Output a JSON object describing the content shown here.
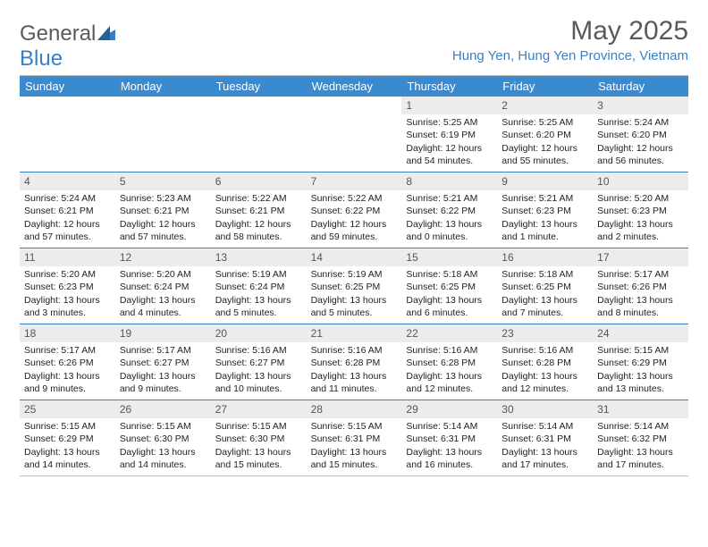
{
  "brand": {
    "general": "General",
    "blue": "Blue"
  },
  "title": "May 2025",
  "location": "Hung Yen, Hung Yen Province, Vietnam",
  "weekdays": [
    "Sunday",
    "Monday",
    "Tuesday",
    "Wednesday",
    "Thursday",
    "Friday",
    "Saturday"
  ],
  "colors": {
    "header_bg": "#3a8ad0",
    "brand_blue": "#3a7fc4",
    "row_divider": "#3a7fc4",
    "num_bg": "#ececec"
  },
  "weeks": [
    [
      {
        "n": "",
        "sr": "",
        "ss": "",
        "dl1": "",
        "dl2": "",
        "empty": true
      },
      {
        "n": "",
        "sr": "",
        "ss": "",
        "dl1": "",
        "dl2": "",
        "empty": true
      },
      {
        "n": "",
        "sr": "",
        "ss": "",
        "dl1": "",
        "dl2": "",
        "empty": true
      },
      {
        "n": "",
        "sr": "",
        "ss": "",
        "dl1": "",
        "dl2": "",
        "empty": true
      },
      {
        "n": "1",
        "sr": "Sunrise: 5:25 AM",
        "ss": "Sunset: 6:19 PM",
        "dl1": "Daylight: 12 hours",
        "dl2": "and 54 minutes."
      },
      {
        "n": "2",
        "sr": "Sunrise: 5:25 AM",
        "ss": "Sunset: 6:20 PM",
        "dl1": "Daylight: 12 hours",
        "dl2": "and 55 minutes."
      },
      {
        "n": "3",
        "sr": "Sunrise: 5:24 AM",
        "ss": "Sunset: 6:20 PM",
        "dl1": "Daylight: 12 hours",
        "dl2": "and 56 minutes."
      }
    ],
    [
      {
        "n": "4",
        "sr": "Sunrise: 5:24 AM",
        "ss": "Sunset: 6:21 PM",
        "dl1": "Daylight: 12 hours",
        "dl2": "and 57 minutes."
      },
      {
        "n": "5",
        "sr": "Sunrise: 5:23 AM",
        "ss": "Sunset: 6:21 PM",
        "dl1": "Daylight: 12 hours",
        "dl2": "and 57 minutes."
      },
      {
        "n": "6",
        "sr": "Sunrise: 5:22 AM",
        "ss": "Sunset: 6:21 PM",
        "dl1": "Daylight: 12 hours",
        "dl2": "and 58 minutes."
      },
      {
        "n": "7",
        "sr": "Sunrise: 5:22 AM",
        "ss": "Sunset: 6:22 PM",
        "dl1": "Daylight: 12 hours",
        "dl2": "and 59 minutes."
      },
      {
        "n": "8",
        "sr": "Sunrise: 5:21 AM",
        "ss": "Sunset: 6:22 PM",
        "dl1": "Daylight: 13 hours",
        "dl2": "and 0 minutes."
      },
      {
        "n": "9",
        "sr": "Sunrise: 5:21 AM",
        "ss": "Sunset: 6:23 PM",
        "dl1": "Daylight: 13 hours",
        "dl2": "and 1 minute."
      },
      {
        "n": "10",
        "sr": "Sunrise: 5:20 AM",
        "ss": "Sunset: 6:23 PM",
        "dl1": "Daylight: 13 hours",
        "dl2": "and 2 minutes."
      }
    ],
    [
      {
        "n": "11",
        "sr": "Sunrise: 5:20 AM",
        "ss": "Sunset: 6:23 PM",
        "dl1": "Daylight: 13 hours",
        "dl2": "and 3 minutes."
      },
      {
        "n": "12",
        "sr": "Sunrise: 5:20 AM",
        "ss": "Sunset: 6:24 PM",
        "dl1": "Daylight: 13 hours",
        "dl2": "and 4 minutes."
      },
      {
        "n": "13",
        "sr": "Sunrise: 5:19 AM",
        "ss": "Sunset: 6:24 PM",
        "dl1": "Daylight: 13 hours",
        "dl2": "and 5 minutes."
      },
      {
        "n": "14",
        "sr": "Sunrise: 5:19 AM",
        "ss": "Sunset: 6:25 PM",
        "dl1": "Daylight: 13 hours",
        "dl2": "and 5 minutes."
      },
      {
        "n": "15",
        "sr": "Sunrise: 5:18 AM",
        "ss": "Sunset: 6:25 PM",
        "dl1": "Daylight: 13 hours",
        "dl2": "and 6 minutes."
      },
      {
        "n": "16",
        "sr": "Sunrise: 5:18 AM",
        "ss": "Sunset: 6:25 PM",
        "dl1": "Daylight: 13 hours",
        "dl2": "and 7 minutes."
      },
      {
        "n": "17",
        "sr": "Sunrise: 5:17 AM",
        "ss": "Sunset: 6:26 PM",
        "dl1": "Daylight: 13 hours",
        "dl2": "and 8 minutes."
      }
    ],
    [
      {
        "n": "18",
        "sr": "Sunrise: 5:17 AM",
        "ss": "Sunset: 6:26 PM",
        "dl1": "Daylight: 13 hours",
        "dl2": "and 9 minutes."
      },
      {
        "n": "19",
        "sr": "Sunrise: 5:17 AM",
        "ss": "Sunset: 6:27 PM",
        "dl1": "Daylight: 13 hours",
        "dl2": "and 9 minutes."
      },
      {
        "n": "20",
        "sr": "Sunrise: 5:16 AM",
        "ss": "Sunset: 6:27 PM",
        "dl1": "Daylight: 13 hours",
        "dl2": "and 10 minutes."
      },
      {
        "n": "21",
        "sr": "Sunrise: 5:16 AM",
        "ss": "Sunset: 6:28 PM",
        "dl1": "Daylight: 13 hours",
        "dl2": "and 11 minutes."
      },
      {
        "n": "22",
        "sr": "Sunrise: 5:16 AM",
        "ss": "Sunset: 6:28 PM",
        "dl1": "Daylight: 13 hours",
        "dl2": "and 12 minutes."
      },
      {
        "n": "23",
        "sr": "Sunrise: 5:16 AM",
        "ss": "Sunset: 6:28 PM",
        "dl1": "Daylight: 13 hours",
        "dl2": "and 12 minutes."
      },
      {
        "n": "24",
        "sr": "Sunrise: 5:15 AM",
        "ss": "Sunset: 6:29 PM",
        "dl1": "Daylight: 13 hours",
        "dl2": "and 13 minutes."
      }
    ],
    [
      {
        "n": "25",
        "sr": "Sunrise: 5:15 AM",
        "ss": "Sunset: 6:29 PM",
        "dl1": "Daylight: 13 hours",
        "dl2": "and 14 minutes."
      },
      {
        "n": "26",
        "sr": "Sunrise: 5:15 AM",
        "ss": "Sunset: 6:30 PM",
        "dl1": "Daylight: 13 hours",
        "dl2": "and 14 minutes."
      },
      {
        "n": "27",
        "sr": "Sunrise: 5:15 AM",
        "ss": "Sunset: 6:30 PM",
        "dl1": "Daylight: 13 hours",
        "dl2": "and 15 minutes."
      },
      {
        "n": "28",
        "sr": "Sunrise: 5:15 AM",
        "ss": "Sunset: 6:31 PM",
        "dl1": "Daylight: 13 hours",
        "dl2": "and 15 minutes."
      },
      {
        "n": "29",
        "sr": "Sunrise: 5:14 AM",
        "ss": "Sunset: 6:31 PM",
        "dl1": "Daylight: 13 hours",
        "dl2": "and 16 minutes."
      },
      {
        "n": "30",
        "sr": "Sunrise: 5:14 AM",
        "ss": "Sunset: 6:31 PM",
        "dl1": "Daylight: 13 hours",
        "dl2": "and 17 minutes."
      },
      {
        "n": "31",
        "sr": "Sunrise: 5:14 AM",
        "ss": "Sunset: 6:32 PM",
        "dl1": "Daylight: 13 hours",
        "dl2": "and 17 minutes."
      }
    ]
  ]
}
